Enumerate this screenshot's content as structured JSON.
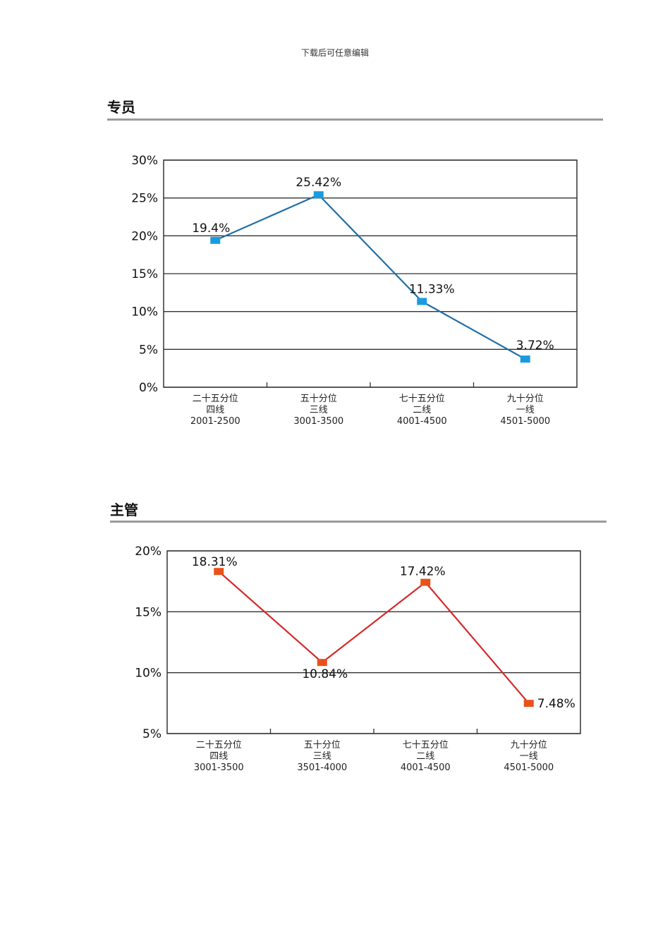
{
  "page": {
    "header": "下载后可任意编辑"
  },
  "sections": [
    {
      "title": "专员"
    },
    {
      "title": "主管"
    }
  ],
  "chart_data": [
    {
      "type": "line",
      "title": "专员",
      "categories": [
        [
          "二十五分位",
          "四线",
          "2001-2500"
        ],
        [
          "五十分位",
          "三线",
          "3001-3500"
        ],
        [
          "七十五分位",
          "二线",
          "4001-4500"
        ],
        [
          "九十分位",
          "一线",
          "4501-5000"
        ]
      ],
      "values": [
        19.4,
        25.42,
        11.33,
        3.72
      ],
      "data_labels": [
        "19.4%",
        "25.42%",
        "11.33%",
        "3.72%"
      ],
      "yticks": [
        "0%",
        "5%",
        "10%",
        "15%",
        "20%",
        "25%",
        "30%"
      ],
      "ylim": [
        0,
        30
      ],
      "grid": true,
      "line_color": "#1f6fa8",
      "marker_color": "#1a9be0"
    },
    {
      "type": "line",
      "title": "主管",
      "categories": [
        [
          "二十五分位",
          "四线",
          "3001-3500"
        ],
        [
          "五十分位",
          "三线",
          "3501-4000"
        ],
        [
          "七十五分位",
          "二线",
          "4001-4500"
        ],
        [
          "九十分位",
          "一线",
          "4501-5000"
        ]
      ],
      "values": [
        18.31,
        10.84,
        17.42,
        7.48
      ],
      "data_labels": [
        "18.31%",
        "10.84%",
        "17.42%",
        "7.48%"
      ],
      "yticks": [
        "5%",
        "10%",
        "15%",
        "20%"
      ],
      "ylim": [
        5,
        20
      ],
      "grid": true,
      "line_color": "#d42a2a",
      "marker_color": "#e8521a"
    }
  ]
}
